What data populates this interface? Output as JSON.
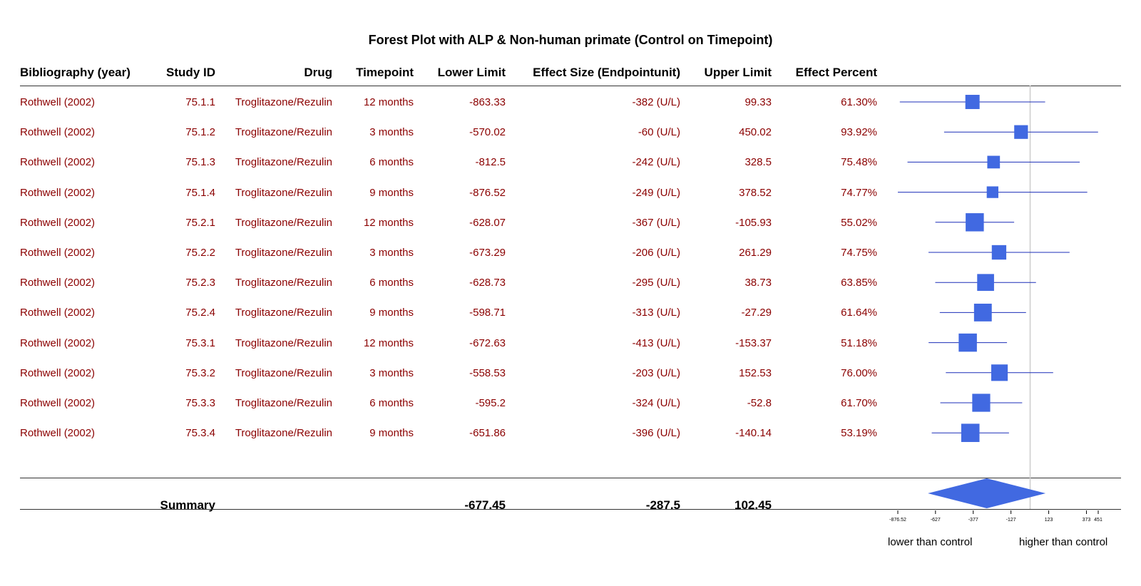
{
  "title": "Forest Plot with ALP & Non-human primate (Control on Timepoint)",
  "headers": {
    "bibliography": "Bibliography (year)",
    "study_id": "Study ID",
    "drug": "Drug",
    "timepoint": "Timepoint",
    "lower": "Lower Limit",
    "effect": "Effect Size (Endpointunit)",
    "upper": "Upper Limit",
    "percent": "Effect Percent"
  },
  "rows": [
    {
      "bib": "Rothwell (2002)",
      "id": "75.1.1",
      "drug": "Troglitazone/Rezulin",
      "tp": "12 months",
      "lower": "-863.33",
      "effect": "-382 (U/L)",
      "upper": "99.33",
      "percent": "61.30%"
    },
    {
      "bib": "Rothwell (2002)",
      "id": "75.1.2",
      "drug": "Troglitazone/Rezulin",
      "tp": "3 months",
      "lower": "-570.02",
      "effect": "-60 (U/L)",
      "upper": "450.02",
      "percent": "93.92%"
    },
    {
      "bib": "Rothwell (2002)",
      "id": "75.1.3",
      "drug": "Troglitazone/Rezulin",
      "tp": "6 months",
      "lower": "-812.5",
      "effect": "-242 (U/L)",
      "upper": "328.5",
      "percent": "75.48%"
    },
    {
      "bib": "Rothwell (2002)",
      "id": "75.1.4",
      "drug": "Troglitazone/Rezulin",
      "tp": "9 months",
      "lower": "-876.52",
      "effect": "-249 (U/L)",
      "upper": "378.52",
      "percent": "74.77%"
    },
    {
      "bib": "Rothwell (2002)",
      "id": "75.2.1",
      "drug": "Troglitazone/Rezulin",
      "tp": "12 months",
      "lower": "-628.07",
      "effect": "-367 (U/L)",
      "upper": "-105.93",
      "percent": "55.02%"
    },
    {
      "bib": "Rothwell (2002)",
      "id": "75.2.2",
      "drug": "Troglitazone/Rezulin",
      "tp": "3 months",
      "lower": "-673.29",
      "effect": "-206 (U/L)",
      "upper": "261.29",
      "percent": "74.75%"
    },
    {
      "bib": "Rothwell (2002)",
      "id": "75.2.3",
      "drug": "Troglitazone/Rezulin",
      "tp": "6 months",
      "lower": "-628.73",
      "effect": "-295 (U/L)",
      "upper": "38.73",
      "percent": "63.85%"
    },
    {
      "bib": "Rothwell (2002)",
      "id": "75.2.4",
      "drug": "Troglitazone/Rezulin",
      "tp": "9 months",
      "lower": "-598.71",
      "effect": "-313 (U/L)",
      "upper": "-27.29",
      "percent": "61.64%"
    },
    {
      "bib": "Rothwell (2002)",
      "id": "75.3.1",
      "drug": "Troglitazone/Rezulin",
      "tp": "12 months",
      "lower": "-672.63",
      "effect": "-413 (U/L)",
      "upper": "-153.37",
      "percent": "51.18%"
    },
    {
      "bib": "Rothwell (2002)",
      "id": "75.3.2",
      "drug": "Troglitazone/Rezulin",
      "tp": "3 months",
      "lower": "-558.53",
      "effect": "-203 (U/L)",
      "upper": "152.53",
      "percent": "76.00%"
    },
    {
      "bib": "Rothwell (2002)",
      "id": "75.3.3",
      "drug": "Troglitazone/Rezulin",
      "tp": "6 months",
      "lower": "-595.2",
      "effect": "-324 (U/L)",
      "upper": "-52.8",
      "percent": "61.70%"
    },
    {
      "bib": "Rothwell (2002)",
      "id": "75.3.4",
      "drug": "Troglitazone/Rezulin",
      "tp": "9 months",
      "lower": "-651.86",
      "effect": "-396 (U/L)",
      "upper": "-140.14",
      "percent": "53.19%"
    }
  ],
  "summary": {
    "label": "Summary",
    "lower": "-677.45",
    "effect": "-287.5",
    "upper": "102.45"
  },
  "axis": {
    "ticks": [
      "-876.52",
      "-627",
      "-377",
      "-127",
      "123",
      "373",
      "451"
    ]
  },
  "direction_labels": {
    "left": "lower than control",
    "right": "higher than control"
  },
  "colors": {
    "text": "#8b0000",
    "marker": "#4169e1",
    "line": "#1c2fb8",
    "reference": "#cccccc"
  },
  "chart_data": {
    "type": "forest",
    "title": "Forest Plot with ALP & Non-human primate (Control on Timepoint)",
    "reference_line": 0,
    "xlim": [
      -876.52,
      451
    ],
    "xticks": [
      -876.52,
      -627,
      -377,
      -127,
      123,
      373,
      451
    ],
    "studies": [
      {
        "id": "75.1.1",
        "effect": -382,
        "lower": -863.33,
        "upper": 99.33,
        "weight": 61.3
      },
      {
        "id": "75.1.2",
        "effect": -60,
        "lower": -570.02,
        "upper": 450.02,
        "weight": 93.92
      },
      {
        "id": "75.1.3",
        "effect": -242,
        "lower": -812.5,
        "upper": 328.5,
        "weight": 75.48
      },
      {
        "id": "75.1.4",
        "effect": -249,
        "lower": -876.52,
        "upper": 378.52,
        "weight": 74.77
      },
      {
        "id": "75.2.1",
        "effect": -367,
        "lower": -628.07,
        "upper": -105.93,
        "weight": 55.02
      },
      {
        "id": "75.2.2",
        "effect": -206,
        "lower": -673.29,
        "upper": 261.29,
        "weight": 74.75
      },
      {
        "id": "75.2.3",
        "effect": -295,
        "lower": -628.73,
        "upper": 38.73,
        "weight": 63.85
      },
      {
        "id": "75.2.4",
        "effect": -313,
        "lower": -598.71,
        "upper": -27.29,
        "weight": 61.64
      },
      {
        "id": "75.3.1",
        "effect": -413,
        "lower": -672.63,
        "upper": -153.37,
        "weight": 51.18
      },
      {
        "id": "75.3.2",
        "effect": -203,
        "lower": -558.53,
        "upper": 152.53,
        "weight": 76.0
      },
      {
        "id": "75.3.3",
        "effect": -324,
        "lower": -595.2,
        "upper": -52.8,
        "weight": 61.7
      },
      {
        "id": "75.3.4",
        "effect": -396,
        "lower": -651.86,
        "upper": -140.14,
        "weight": 53.19
      }
    ],
    "summary": {
      "effect": -287.5,
      "lower": -677.45,
      "upper": 102.45
    }
  }
}
